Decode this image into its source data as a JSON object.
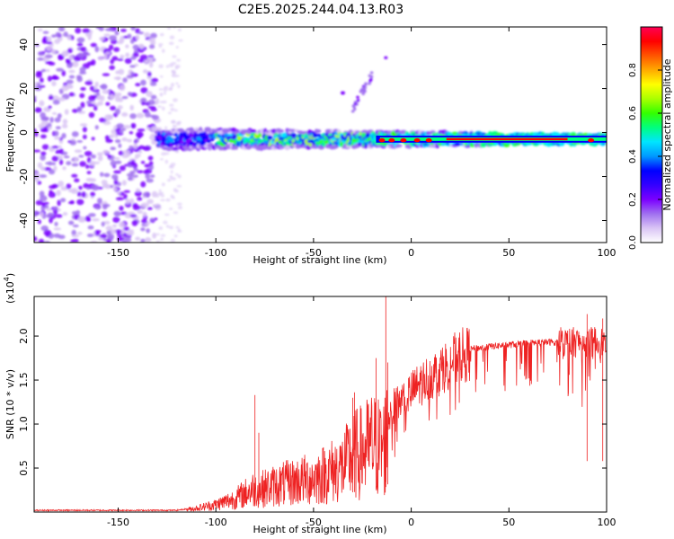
{
  "figure_title": "C2E5.2025.244.04.13.R03",
  "chart_data": [
    {
      "type": "heatmap",
      "name": "spectrogram",
      "xlabel": "Height of straight line (km)",
      "ylabel": "Frequency (Hz)",
      "xlim": [
        -193,
        100
      ],
      "ylim": [
        -50,
        48
      ],
      "xticks": [
        -150,
        -100,
        -50,
        0,
        50,
        100
      ],
      "yticks": [
        -40,
        -20,
        0,
        20,
        40
      ],
      "colorbar": {
        "label": "Normalized spectral amplitude",
        "range": [
          0,
          1
        ],
        "ticks": [
          "0.0",
          "0.2",
          "0.4",
          "0.6",
          "0.8"
        ],
        "tick_values": [
          0.0,
          0.2,
          0.4,
          0.6,
          0.8
        ],
        "colors": [
          "#ffffff",
          "#d9c4f5",
          "#a070f0",
          "#7b00ff",
          "#3300ff",
          "#0000ff",
          "#0099ff",
          "#00e5ff",
          "#00ff7f",
          "#33ff00",
          "#aaff00",
          "#ffff00",
          "#ffaa00",
          "#ff5500",
          "#ff0000",
          "#ff0055"
        ]
      },
      "regions": [
        {
          "name": "noise",
          "x_range": [
            -193,
            -130
          ],
          "y_range": [
            -50,
            48
          ],
          "level": 0.2
        },
        {
          "name": "band",
          "x_range": [
            -130,
            100
          ],
          "center_hz": -3,
          "width_hz": 6,
          "peak_level": 0.9
        },
        {
          "name": "harmonic",
          "x_range": [
            -30,
            -20
          ],
          "y_range": [
            8,
            35
          ],
          "level": 0.2
        }
      ]
    },
    {
      "type": "line",
      "name": "snr",
      "xlabel": "Height of straight line (km)",
      "ylabel": "SNR (10 * v/v)",
      "scale_label": "(x10",
      "scale_exp": "4",
      "scale_close": ")",
      "xlim": [
        -193,
        100
      ],
      "ylim": [
        0,
        2.45
      ],
      "xticks": [
        -150,
        -100,
        -50,
        0,
        50,
        100
      ],
      "yticks": [
        0.5,
        1.0,
        1.5,
        2.0
      ],
      "ytick_labels": [
        "0.5",
        "1.0",
        "1.5",
        "2.0"
      ],
      "color": "#ee2222",
      "envelope": {
        "x": [
          -193,
          -120,
          -110,
          -100,
          -90,
          -85,
          -81,
          -78,
          -70,
          -60,
          -50,
          -40,
          -35,
          -30,
          -25,
          -20,
          -15,
          -13,
          -12,
          -10,
          -5,
          0,
          5,
          10,
          15,
          20,
          25,
          30,
          40,
          50,
          60,
          70,
          80,
          90,
          100
        ],
        "y": [
          0.02,
          0.02,
          0.05,
          0.1,
          0.18,
          0.25,
          0.3,
          0.3,
          0.35,
          0.4,
          0.45,
          0.55,
          0.6,
          0.75,
          0.8,
          0.9,
          0.85,
          0.95,
          1.05,
          1.2,
          1.3,
          1.4,
          1.5,
          1.58,
          1.65,
          1.75,
          1.82,
          1.85,
          1.88,
          1.9,
          1.92,
          1.93,
          1.93,
          1.93,
          1.93
        ]
      },
      "spikes": [
        {
          "x": -80,
          "y": 1.33
        },
        {
          "x": -78,
          "y": 0.9
        },
        {
          "x": -30,
          "y": 1.3
        },
        {
          "x": -29,
          "y": 1.36
        },
        {
          "x": -18,
          "y": 1.75
        },
        {
          "x": -13,
          "y": 2.47
        },
        {
          "x": -12,
          "y": 1.7
        },
        {
          "x": 90,
          "y": 2.25
        },
        {
          "x": 98,
          "y": 2.2
        }
      ]
    }
  ]
}
